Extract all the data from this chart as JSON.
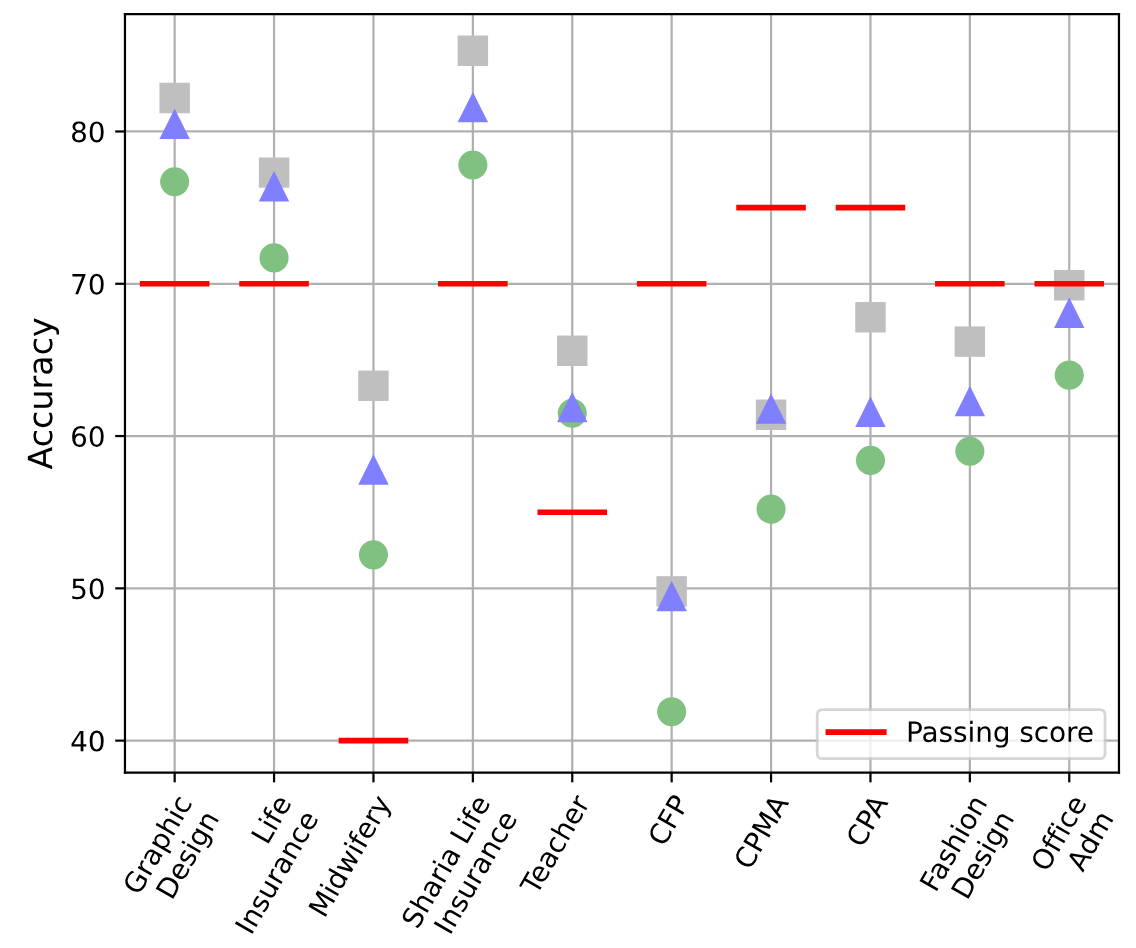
{
  "chart_data": {
    "type": "scatter",
    "ylabel": "Accuracy",
    "categories": [
      "Graphic\nDesign",
      "Life\nInsurance",
      "Midwifery",
      "Sharia Life\nInsurance",
      "Teacher",
      "CFP",
      "CPMA",
      "CPA",
      "Fashion\nDesign",
      "Office\nAdm"
    ],
    "series": [
      {
        "color": "#bfbfbf",
        "marker": "square",
        "values": [
          82.2,
          77.3,
          63.3,
          85.3,
          65.6,
          49.8,
          61.4,
          67.8,
          66.2,
          69.9
        ]
      },
      {
        "color": "#80c080",
        "marker": "circle",
        "values": [
          76.7,
          71.7,
          52.2,
          77.8,
          61.5,
          41.9,
          55.2,
          58.4,
          59.0,
          64.0
        ]
      },
      {
        "color": "#7f7fff",
        "marker": "triangle",
        "values": [
          80.5,
          76.4,
          57.8,
          81.6,
          61.9,
          49.5,
          61.8,
          61.6,
          62.3,
          68.1
        ]
      },
      {
        "name": "Passing score",
        "type": "bar",
        "color": "#ff0000",
        "base": [
          70,
          70,
          40,
          70,
          55,
          70,
          75,
          75,
          70,
          70
        ],
        "values": [
          0,
          0,
          0,
          0,
          0,
          0,
          0,
          0,
          0,
          0
        ]
      }
    ],
    "ylim": [
      37.9,
      87.7
    ],
    "yticks": [
      40,
      50,
      60,
      70,
      80
    ],
    "grid": true,
    "legend": "bottom right"
  }
}
